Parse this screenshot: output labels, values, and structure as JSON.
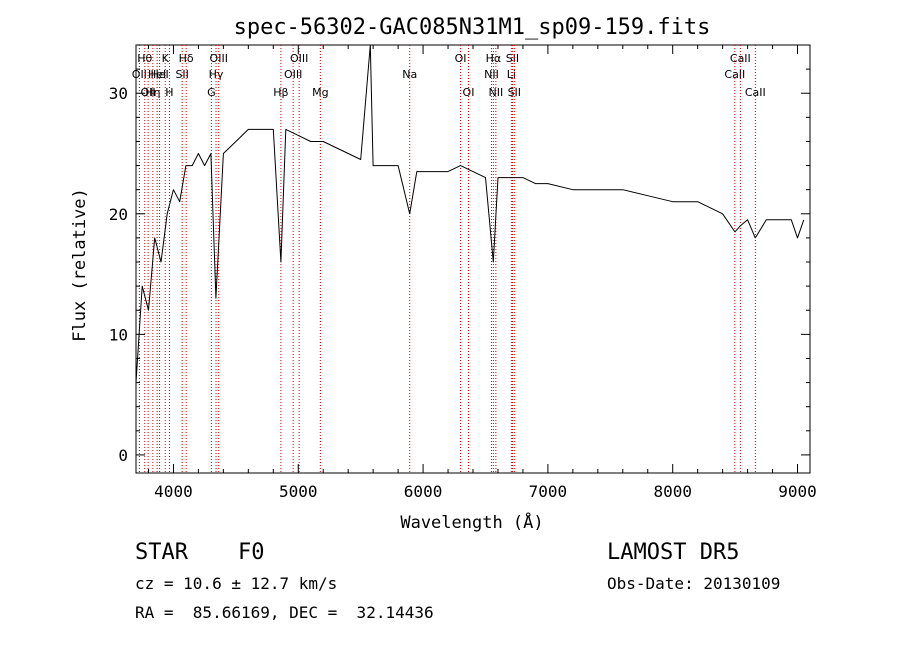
{
  "chart_data": {
    "type": "line",
    "title": "spec-56302-GAC085N31M1_sp09-159.fits",
    "xlabel": "Wavelength (Å)",
    "ylabel": "Flux (relative)",
    "xlim": [
      3700,
      9100
    ],
    "ylim": [
      -1.5,
      34
    ],
    "xticks": [
      4000,
      5000,
      6000,
      7000,
      8000,
      9000
    ],
    "yticks": [
      0,
      10,
      20,
      30
    ],
    "line_color": "#000000",
    "marker_color": "#cc0000",
    "series": [
      {
        "x": [
          3700,
          3750,
          3800,
          3850,
          3900,
          3950,
          4000,
          4050,
          4100,
          4150,
          4200,
          4250,
          4300,
          4340,
          4400,
          4500,
          4600,
          4700,
          4800,
          4861,
          4900,
          5000,
          5100,
          5200,
          5300,
          5400,
          5500,
          5577,
          5600,
          5700,
          5800,
          5893,
          5950,
          6000,
          6100,
          6200,
          6300,
          6400,
          6500,
          6563,
          6600,
          6700,
          6800,
          6900,
          7000,
          7200,
          7400,
          7600,
          7800,
          8000,
          8200,
          8400,
          8498,
          8542,
          8600,
          8662,
          8750,
          8850,
          8950,
          9000,
          9050
        ],
        "y": [
          6,
          14,
          12,
          18,
          16,
          20,
          22,
          21,
          24,
          24,
          25,
          24,
          25,
          13,
          25,
          26,
          27,
          27,
          27,
          16,
          27,
          26.5,
          26,
          26,
          25.5,
          25,
          24.5,
          34,
          24,
          24,
          24,
          20,
          23.5,
          23.5,
          23.5,
          23.5,
          24,
          23.5,
          23,
          16,
          23,
          23,
          23,
          22.5,
          22.5,
          22,
          22,
          22,
          21.5,
          21,
          21,
          20,
          18.5,
          19,
          19.5,
          18,
          19.5,
          19.5,
          19.5,
          18,
          19.5
        ]
      }
    ],
    "line_markers": [
      {
        "wave": 3727,
        "label": "OII",
        "row": 2
      },
      {
        "wave": 3770,
        "label": "Hθ",
        "row": 1
      },
      {
        "wave": 3797,
        "label": "OII",
        "row": 3
      },
      {
        "wave": 3835,
        "label": "Hη",
        "row": 3
      },
      {
        "wave": 3869,
        "label": "HeI",
        "row": 2
      },
      {
        "wave": 3889,
        "label": "HeI",
        "row": 2
      },
      {
        "wave": 3934,
        "label": "K",
        "row": 1
      },
      {
        "wave": 3968,
        "label": "H",
        "row": 3
      },
      {
        "wave": 4070,
        "label": "SII",
        "row": 2
      },
      {
        "wave": 4102,
        "label": "Hδ",
        "row": 1
      },
      {
        "wave": 4304,
        "label": "G",
        "row": 3
      },
      {
        "wave": 4341,
        "label": "Hγ",
        "row": 2
      },
      {
        "wave": 4363,
        "label": "OIII",
        "row": 1
      },
      {
        "wave": 4861,
        "label": "Hβ",
        "row": 3
      },
      {
        "wave": 4959,
        "label": "OIII",
        "row": 2
      },
      {
        "wave": 5007,
        "label": "OIII",
        "row": 1
      },
      {
        "wave": 5177,
        "label": "Mg",
        "row": 3
      },
      {
        "wave": 5893,
        "label": "Na",
        "row": 2
      },
      {
        "wave": 6300,
        "label": "OI",
        "row": 1
      },
      {
        "wave": 6364,
        "label": "OI",
        "row": 3
      },
      {
        "wave": 6548,
        "label": "NII",
        "row": 2
      },
      {
        "wave": 6563,
        "label": "Hα",
        "row": 1
      },
      {
        "wave": 6583,
        "label": "NII",
        "row": 3
      },
      {
        "wave": 6707,
        "label": "Li",
        "row": 2
      },
      {
        "wave": 6716,
        "label": "SII",
        "row": 1
      },
      {
        "wave": 6731,
        "label": "SII",
        "row": 3
      },
      {
        "wave": 8498,
        "label": "CaII",
        "row": 2
      },
      {
        "wave": 8542,
        "label": "CaII",
        "row": 1
      },
      {
        "wave": 8662,
        "label": "CaII",
        "row": 3
      }
    ]
  },
  "info": {
    "class_label": "STAR",
    "subclass_label": "F0",
    "redshift": "cz = 10.6 ± 12.7 km/s",
    "coords": "RA =  85.66169, DEC =  32.14436",
    "survey": "LAMOST DR5",
    "obs_date": "Obs-Date: 20130109"
  }
}
